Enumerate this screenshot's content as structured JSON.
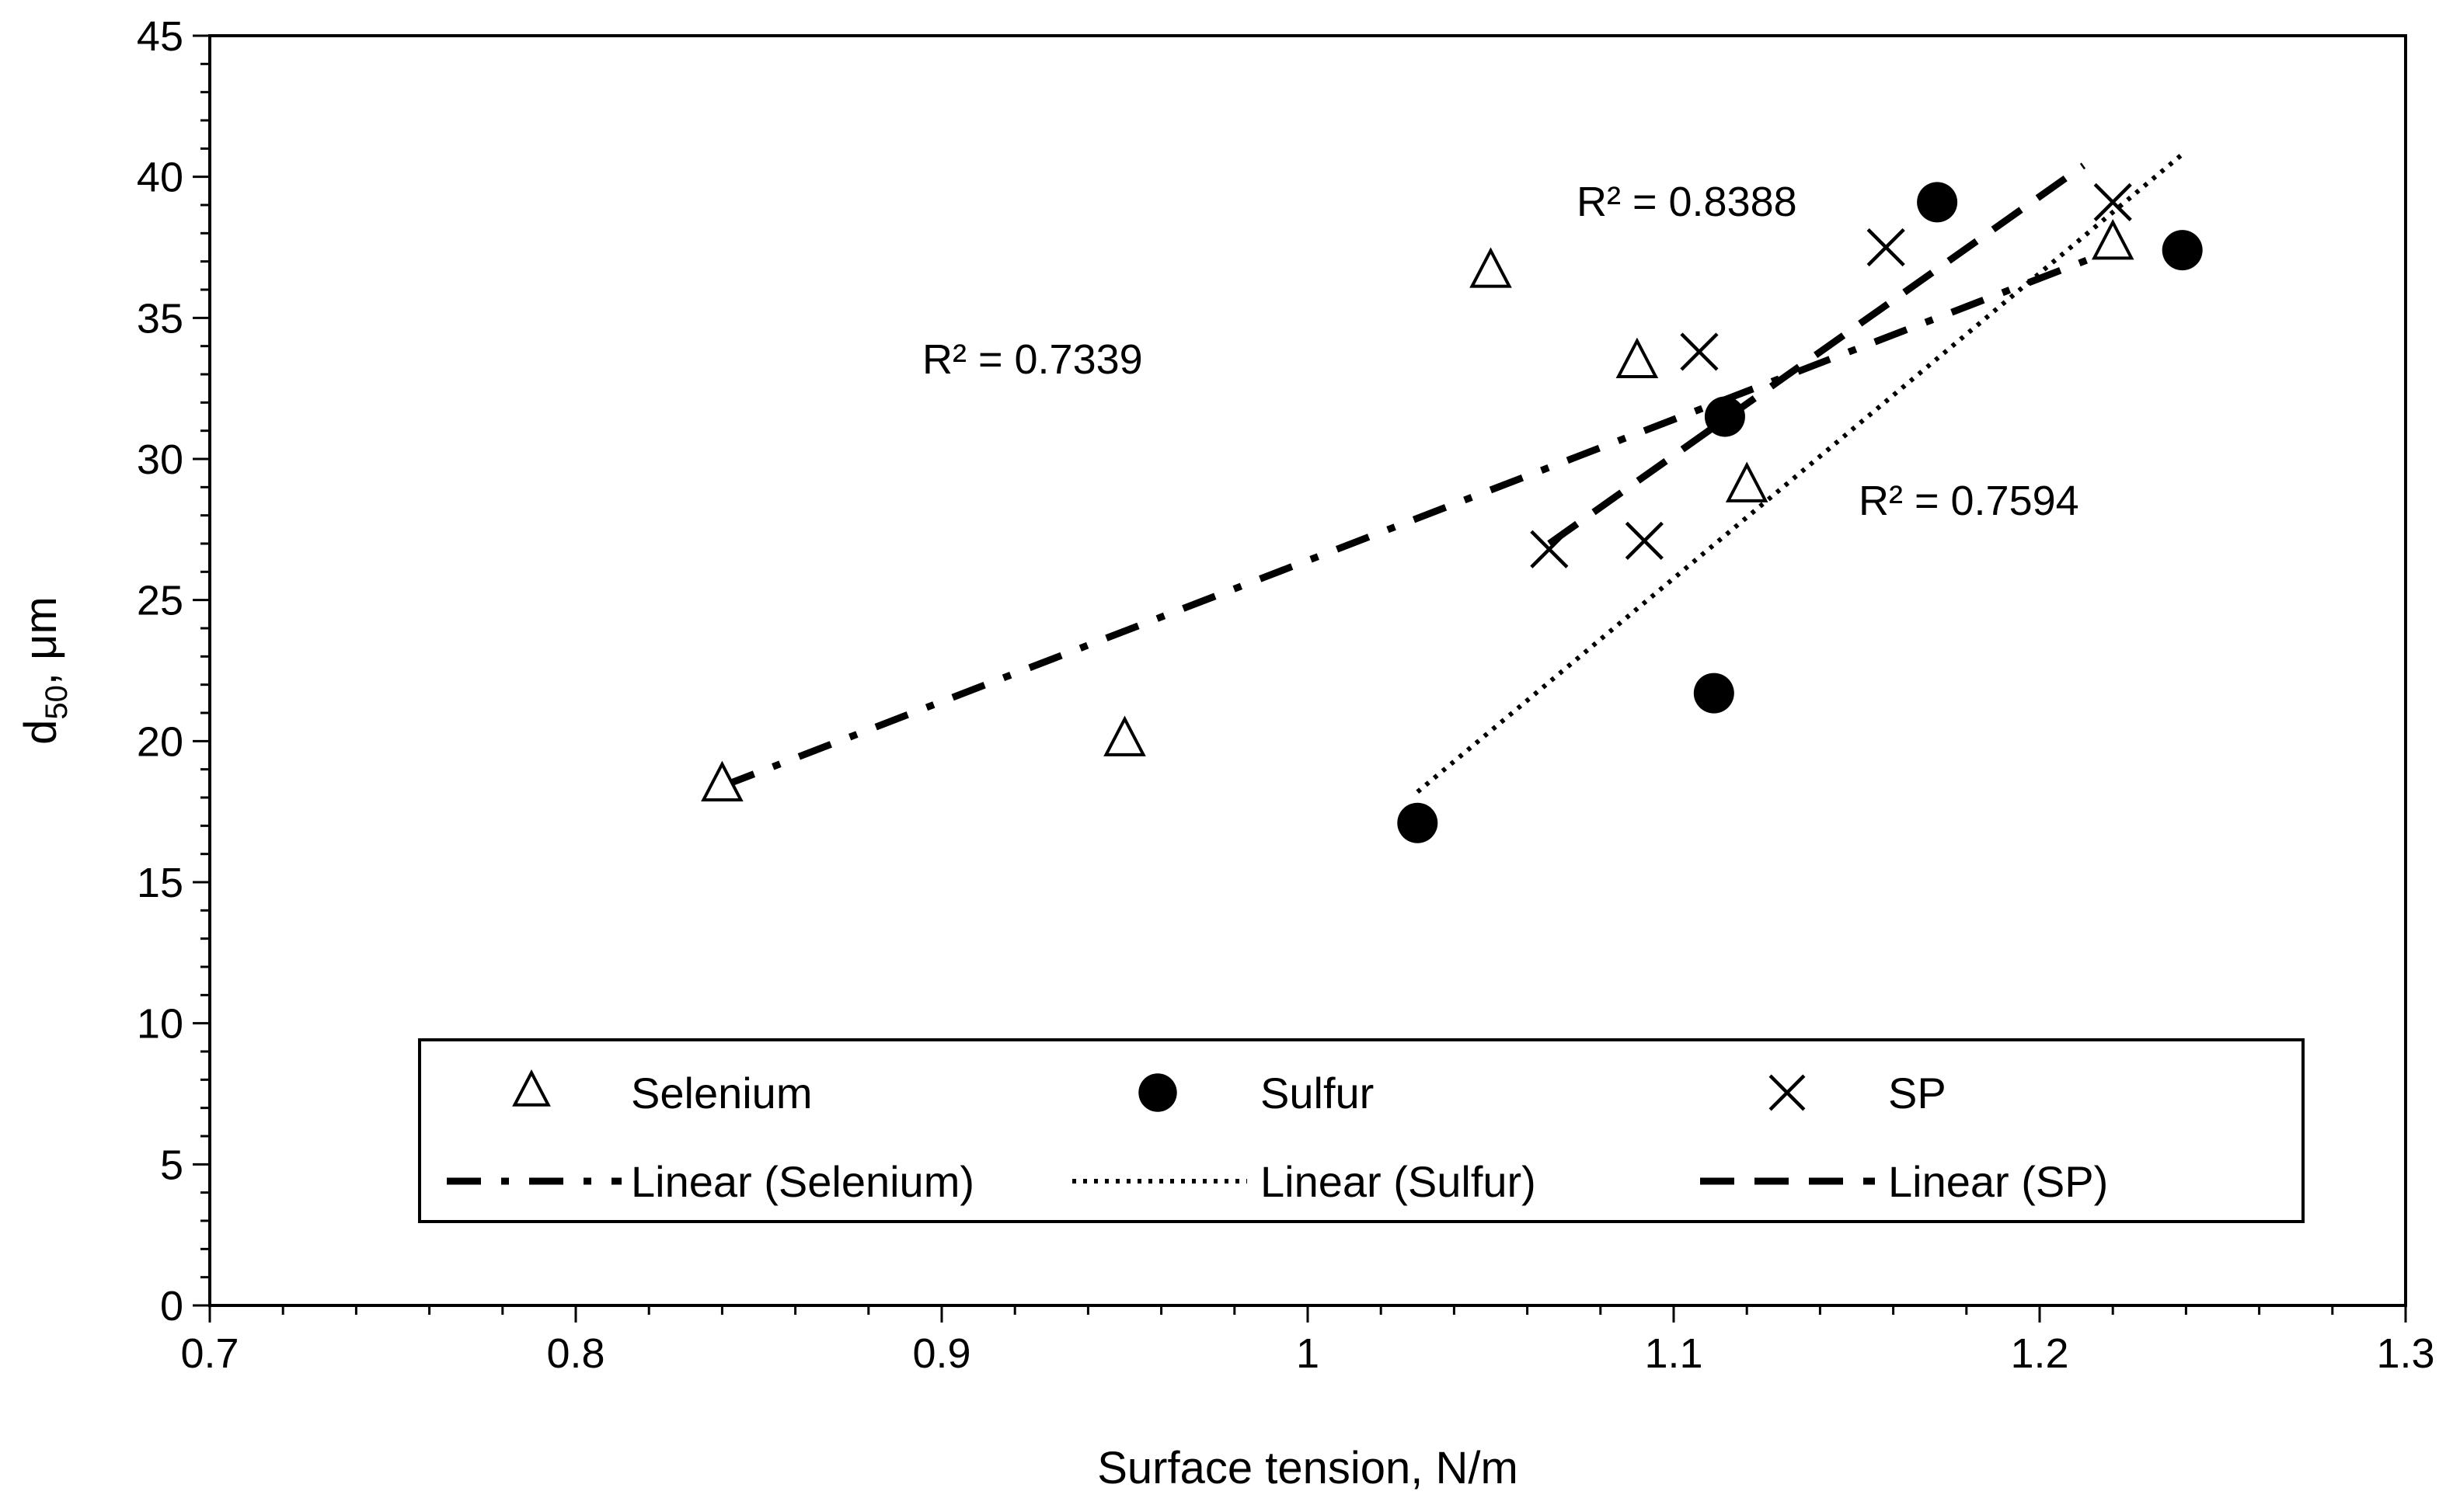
{
  "chart_data": {
    "type": "scatter",
    "title": "",
    "xlabel": "Surface tension, N/m",
    "ylabel_main": "d",
    "ylabel_sub": "50",
    "ylabel_rest": ", μm",
    "xlim": [
      0.7,
      1.3
    ],
    "ylim": [
      0,
      45
    ],
    "x_major": 0.1,
    "x_minor": 0.02,
    "y_major": 5,
    "y_minor": 1,
    "xtick_labels": [
      "0.7",
      "0.8",
      "0.9",
      "1",
      "1.1",
      "1.2",
      "1.3"
    ],
    "ytick_labels": [
      "0",
      "5",
      "10",
      "15",
      "20",
      "25",
      "30",
      "35",
      "40",
      "45"
    ],
    "grid": false,
    "legend_position": "bottom",
    "series": [
      {
        "name": "Selenium",
        "marker": "triangle-open",
        "x": [
          0.84,
          0.95,
          1.05,
          1.09,
          1.12,
          1.22
        ],
        "y": [
          18.4,
          20.0,
          36.6,
          33.4,
          29.0,
          37.6
        ],
        "trend": {
          "name": "Linear (Selenium)",
          "style": "dash-dot",
          "x_range": [
            0.84,
            1.22
          ],
          "y_range": [
            18.4,
            37.4
          ],
          "r2_label": "R² = 0.7339"
        }
      },
      {
        "name": "Sulfur",
        "marker": "circle-filled",
        "x": [
          1.03,
          1.111,
          1.114,
          1.172,
          1.239
        ],
        "y": [
          17.1,
          21.7,
          31.5,
          39.1,
          37.4
        ],
        "trend": {
          "name": "Linear (Sulfur)",
          "style": "dotted",
          "x_range": [
            1.03,
            1.239
          ],
          "y_range": [
            18.2,
            40.8
          ],
          "r2_label": "R² = 0.7594"
        }
      },
      {
        "name": "SP",
        "marker": "x",
        "x": [
          1.066,
          1.092,
          1.107,
          1.158,
          1.22
        ],
        "y": [
          26.8,
          27.1,
          33.8,
          37.5,
          39.1
        ],
        "trend": {
          "name": "Linear (SP)",
          "style": "dashed",
          "x_range": [
            1.066,
            1.212
          ],
          "y_range": [
            27.0,
            40.4
          ],
          "r2_label": "R² = 0.8388"
        }
      }
    ]
  }
}
